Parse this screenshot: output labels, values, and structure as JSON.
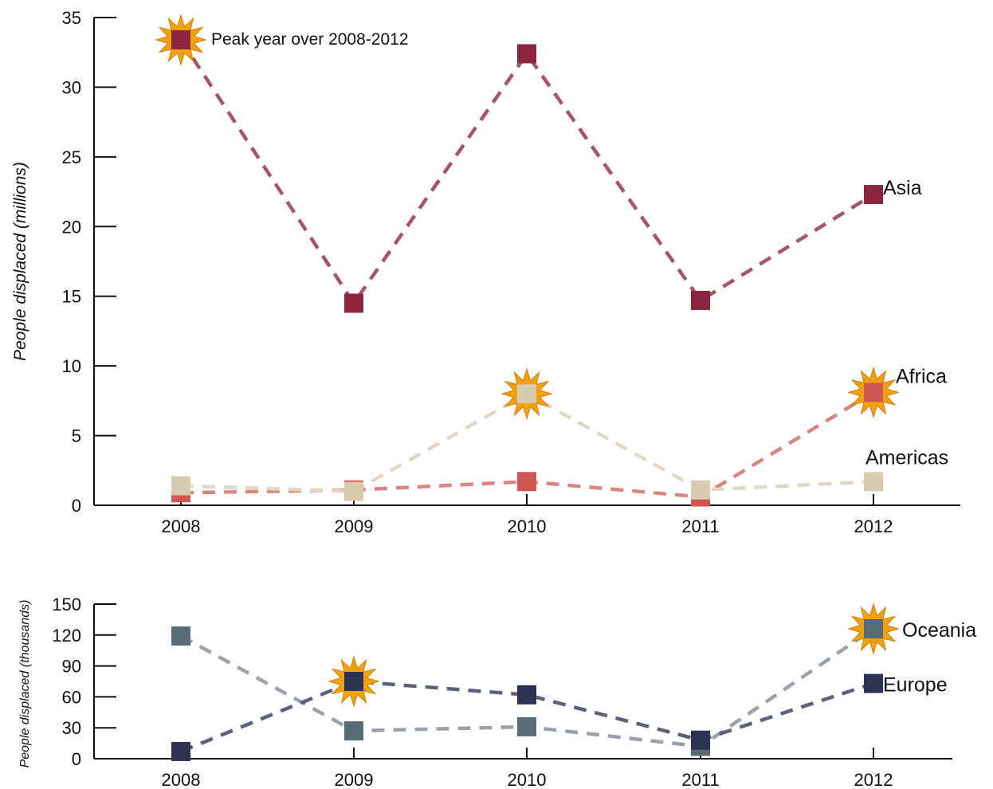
{
  "chart_data": [
    {
      "type": "line",
      "ylabel": "People displaced (millions)",
      "categories": [
        "2008",
        "2009",
        "2010",
        "2011",
        "2012"
      ],
      "ylim": [
        0,
        35
      ],
      "yticks": [
        "0",
        "5",
        "10",
        "15",
        "20",
        "25",
        "30",
        "35"
      ],
      "grid": false,
      "annotation": "Peak year over 2008-2012",
      "series": [
        {
          "name": "Asia",
          "values": [
            33.4,
            14.5,
            32.4,
            14.7,
            22.3
          ],
          "color": "#8b2540",
          "line_color": "#a85468",
          "peak_index": 0
        },
        {
          "name": "Africa",
          "values": [
            0.9,
            1.1,
            1.7,
            0.6,
            8.1
          ],
          "color": "#cf5650",
          "line_color": "#d98581",
          "peak_index": 4
        },
        {
          "name": "Americas",
          "values": [
            1.4,
            1.0,
            8.0,
            1.1,
            1.7
          ],
          "color": "#d8cbb0",
          "line_color": "#e2d7c2",
          "peak_index": 2
        }
      ]
    },
    {
      "type": "line",
      "ylabel": "People displaced (thousands)",
      "categories": [
        "2008",
        "2009",
        "2010",
        "2011",
        "2012"
      ],
      "ylim": [
        0,
        150
      ],
      "yticks": [
        "0",
        "30",
        "60",
        "90",
        "120",
        "150"
      ],
      "grid": false,
      "series": [
        {
          "name": "Oceania",
          "values": [
            119,
            27,
            31,
            12,
            126
          ],
          "color": "#5a6b78",
          "line_color": "#9aa3ad",
          "peak_index": 4
        },
        {
          "name": "Europe",
          "values": [
            7,
            75,
            62,
            18,
            73
          ],
          "color": "#2d3353",
          "line_color": "#5d617a",
          "peak_index": 1
        }
      ]
    }
  ],
  "colors": {
    "axis": "#111111",
    "peak_marker": "#f0a20c",
    "peak_marker_edge": "#d87a0a"
  }
}
